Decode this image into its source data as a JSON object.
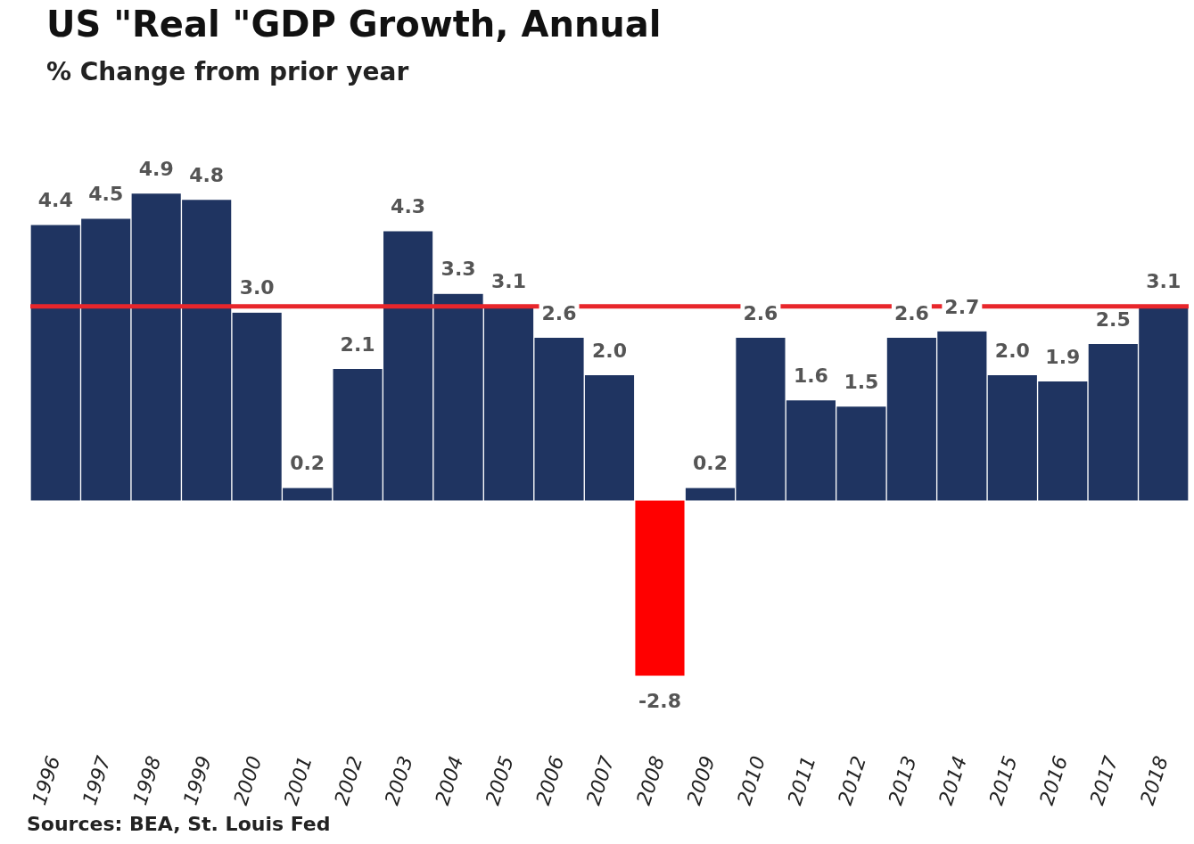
{
  "chart_data": {
    "type": "bar",
    "title": "US \"Real \"GDP Growth, Annual",
    "subtitle": "% Change from prior year",
    "categories": [
      "1996",
      "1997",
      "1998",
      "1999",
      "2000",
      "2001",
      "2002",
      "2003",
      "2004",
      "2005",
      "2006",
      "2007",
      "2008",
      "2009",
      "2010",
      "2011",
      "2012",
      "2013",
      "2014",
      "2015",
      "2016",
      "2017",
      "2018"
    ],
    "values": [
      4.4,
      4.5,
      4.9,
      4.8,
      3.0,
      0.2,
      2.1,
      4.3,
      3.3,
      3.1,
      2.6,
      2.0,
      -2.8,
      0.2,
      2.6,
      1.6,
      1.5,
      2.6,
      2.7,
      2.0,
      1.9,
      2.5,
      3.1
    ],
    "colors": [
      "#1f3461",
      "#1f3461",
      "#1f3461",
      "#1f3461",
      "#1f3461",
      "#1f3461",
      "#1f3461",
      "#1f3461",
      "#1f3461",
      "#1f3461",
      "#1f3461",
      "#1f3461",
      "#ff0000",
      "#1f3461",
      "#1f3461",
      "#1f3461",
      "#1f3461",
      "#1f3461",
      "#1f3461",
      "#1f3461",
      "#1f3461",
      "#1f3461",
      "#1f3461"
    ],
    "value_labels": [
      "4.4",
      "4.5",
      "4.9",
      "4.8",
      "3.0",
      "0.2",
      "2.1",
      "4.3",
      "3.3",
      "3.1",
      "2.6",
      "2.0",
      "-2.8",
      "0.2",
      "2.6",
      "1.6",
      "1.5",
      "2.6",
      "2.7",
      "2.0",
      "1.9",
      "2.5",
      "3.1"
    ],
    "ref_lines": [
      {
        "axis": "y",
        "value": 3.1,
        "color": "#e8262b"
      }
    ],
    "annotations": [
      "Sources: BEA, St. Louis Fed"
    ]
  }
}
